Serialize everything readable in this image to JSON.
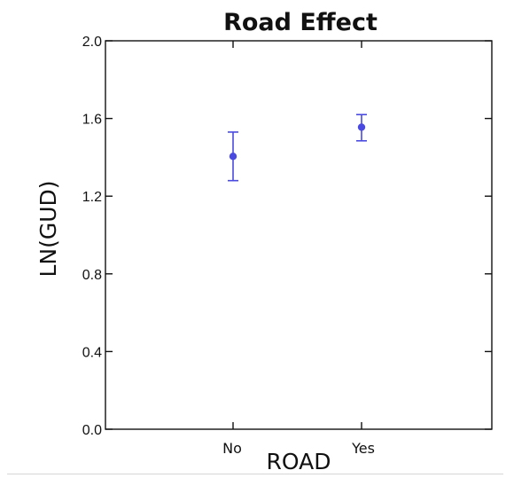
{
  "chart_data": {
    "type": "scatter",
    "title": "Road Effect",
    "xlabel": "ROAD",
    "ylabel": "LN(GUD)",
    "categories": [
      "No",
      "Yes"
    ],
    "series": [
      {
        "values": [
          1.405,
          1.555
        ],
        "error_low": [
          1.28,
          1.485
        ],
        "error_high": [
          1.53,
          1.62
        ]
      }
    ],
    "ylim": [
      0.0,
      2.0
    ],
    "yticks": [
      "0.0",
      "0.4",
      "0.8",
      "1.2",
      "1.6",
      "2.0"
    ],
    "grid": false,
    "legend": "none",
    "marker_color": "#4a4ae0"
  }
}
